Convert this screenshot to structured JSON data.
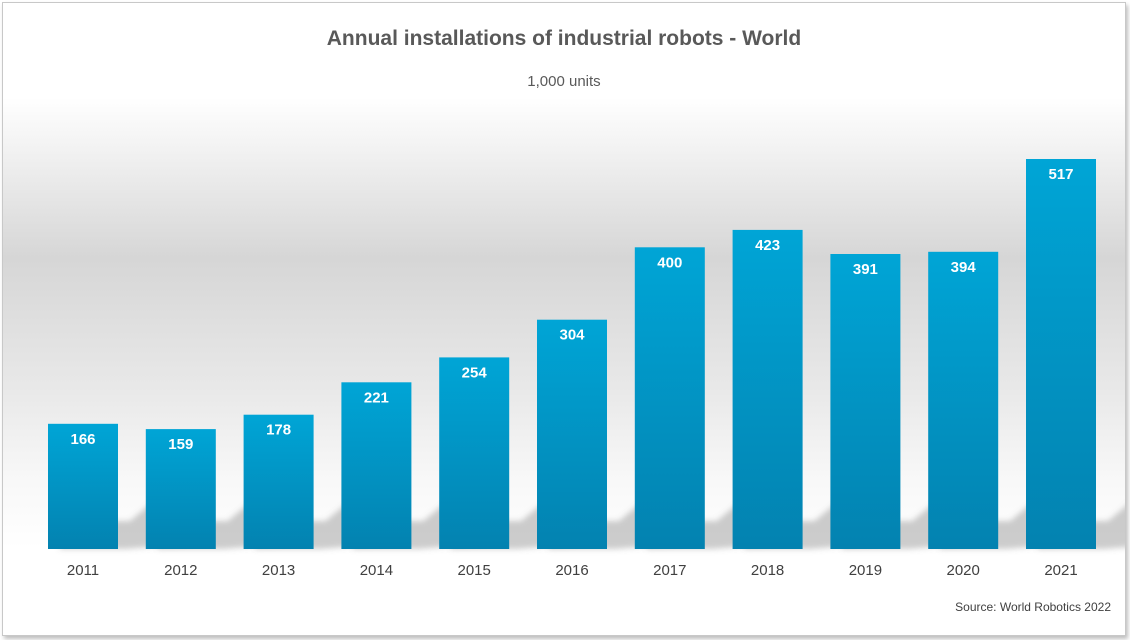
{
  "chart_data": {
    "type": "bar",
    "title": "Annual installations of industrial robots - World",
    "subtitle": "1,000 units",
    "categories": [
      "2011",
      "2012",
      "2013",
      "2014",
      "2015",
      "2016",
      "2017",
      "2018",
      "2019",
      "2020",
      "2021"
    ],
    "values": [
      166,
      159,
      178,
      221,
      254,
      304,
      400,
      423,
      391,
      394,
      517
    ],
    "data_labels": [
      "166",
      "159",
      "178",
      "221",
      "254",
      "304",
      "400",
      "423",
      "391",
      "394",
      "517"
    ],
    "ylim": [
      0,
      517
    ],
    "grid": false,
    "legend": "none",
    "bar_color": "#0096c8",
    "label_color": "#ffffff",
    "source": "Source: World Robotics 2022"
  }
}
